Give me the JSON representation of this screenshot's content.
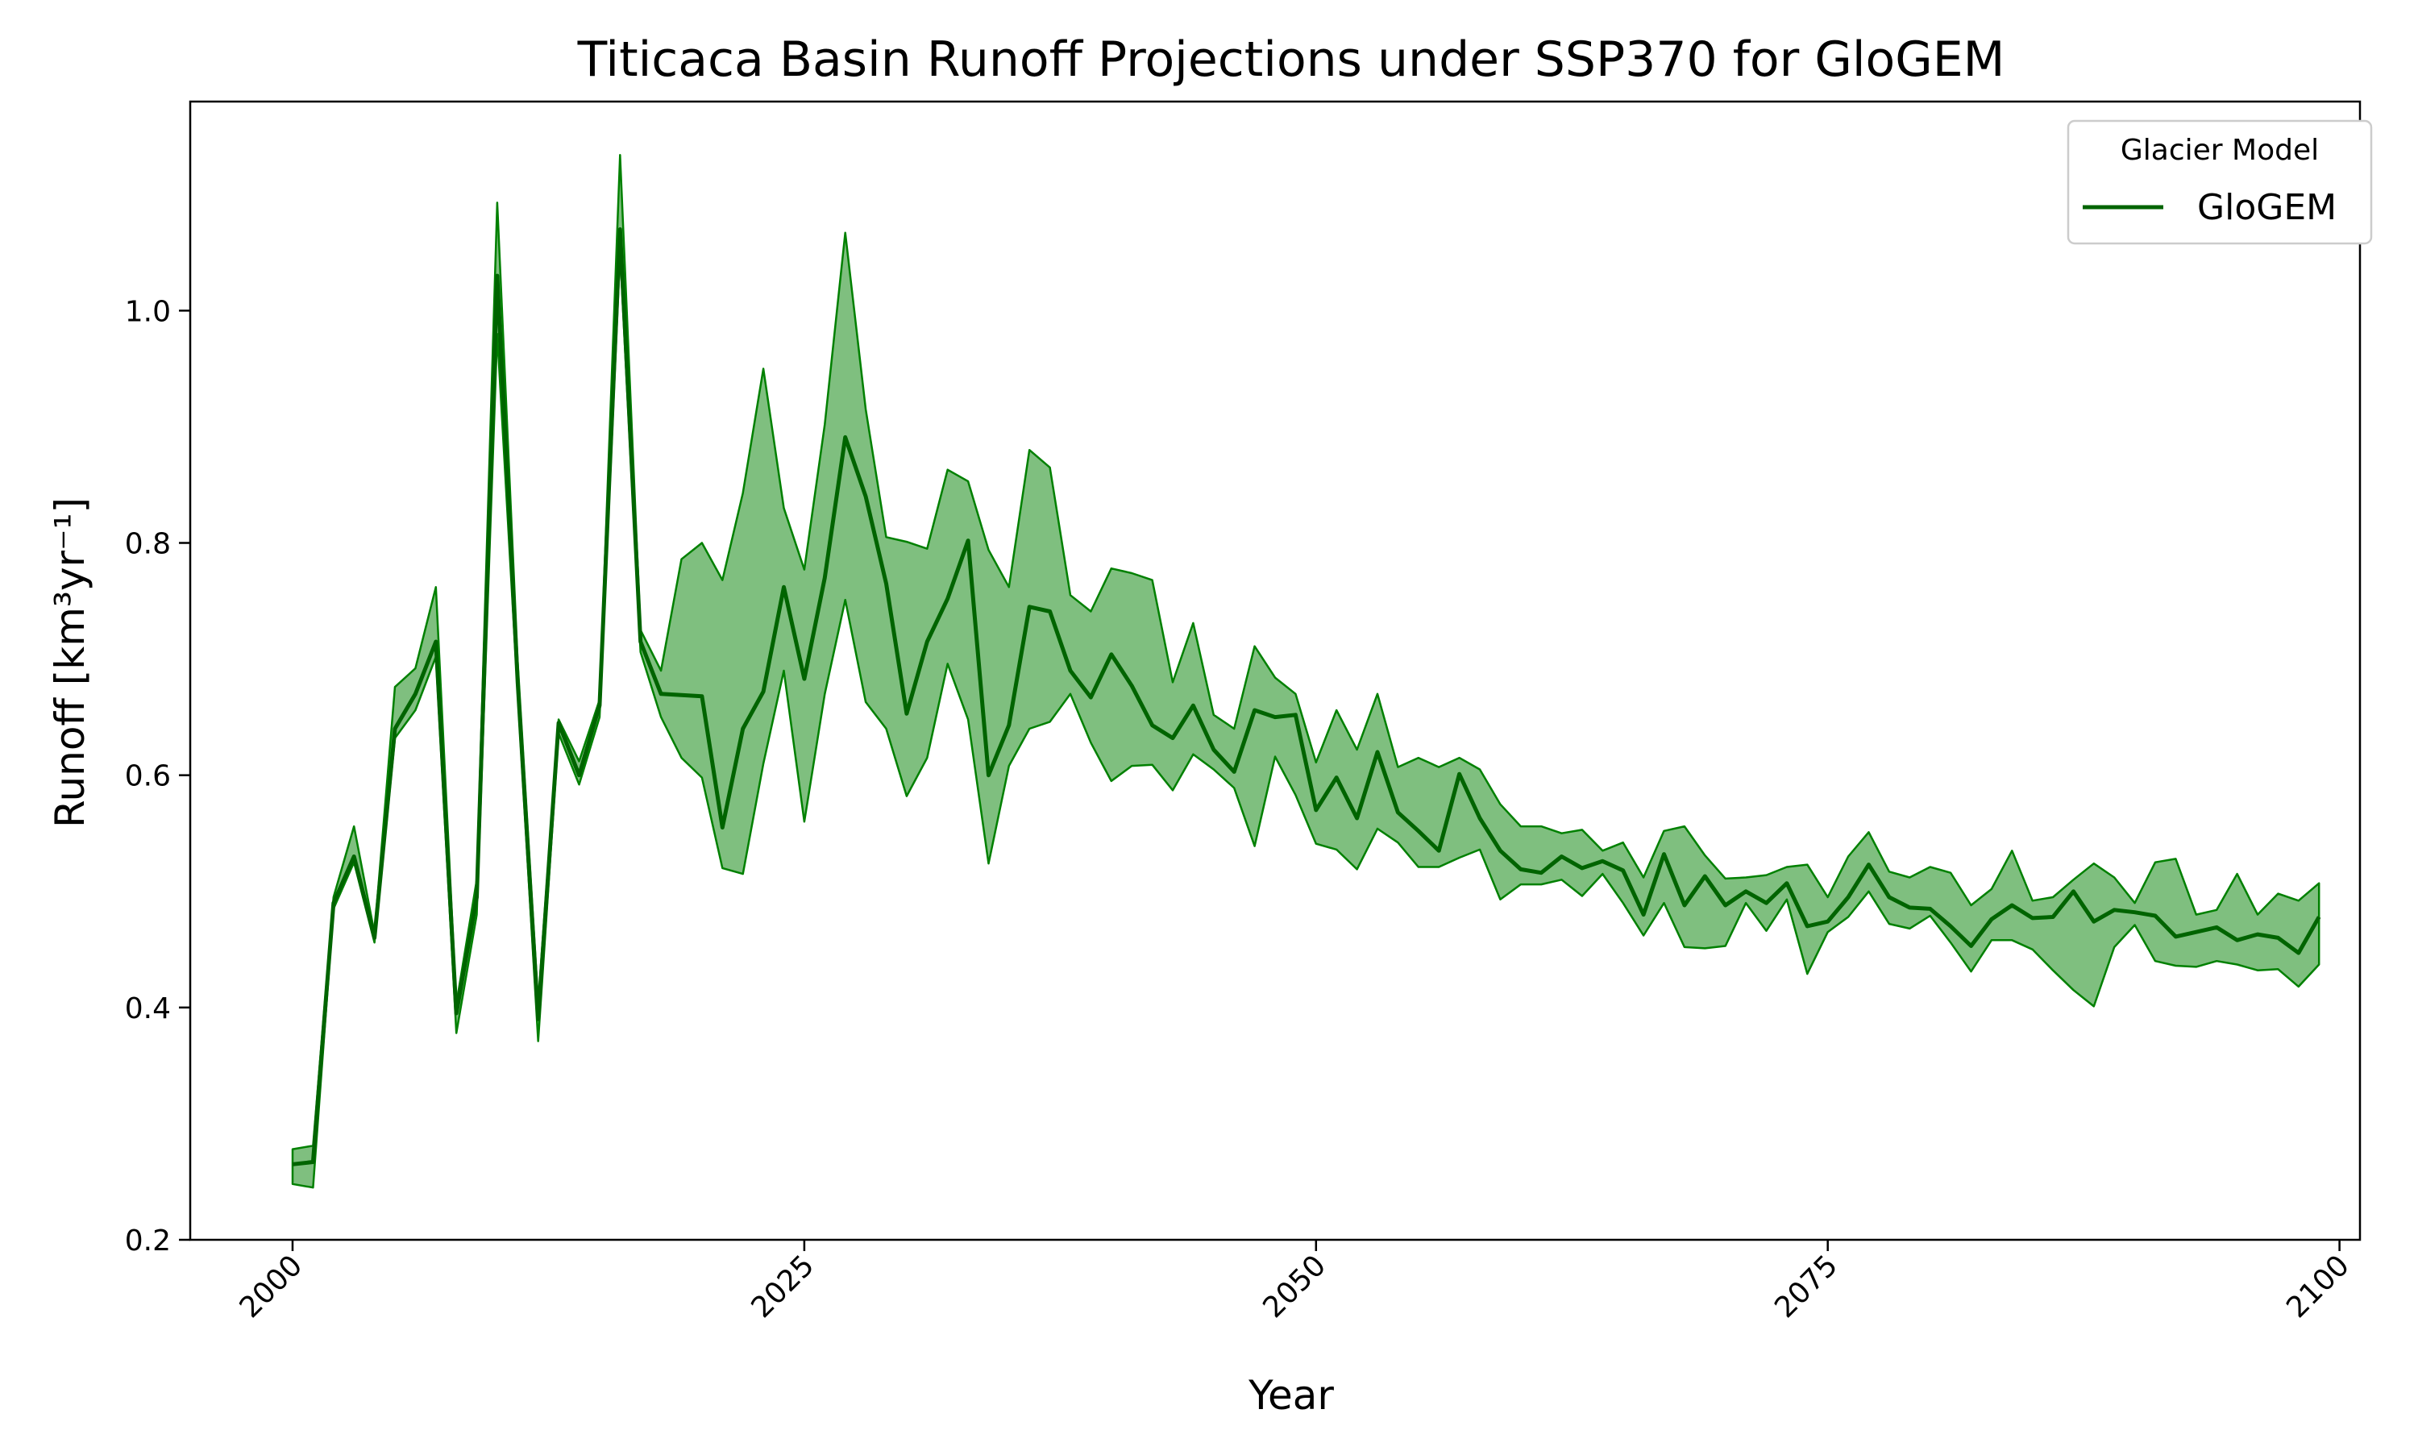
{
  "chart_data": {
    "type": "line",
    "title": "Titicaca Basin Runoff Projections under SSP370 for GloGEM",
    "xlabel": "Year",
    "ylabel": "Runoff [km³yr⁻¹]",
    "xlim": [
      1995,
      2101
    ],
    "ylim": [
      0.2,
      1.18
    ],
    "x_ticks": [
      2000,
      2025,
      2050,
      2075,
      2100
    ],
    "y_ticks": [
      0.2,
      0.4,
      0.6,
      0.8,
      1.0
    ],
    "grid": false,
    "legend": {
      "title": "Glacier Model",
      "position": "top-right"
    },
    "series": [
      {
        "name": "GloGEM",
        "color": "#006400",
        "band_color": "#008000",
        "x": [
          2000,
          2001,
          2002,
          2003,
          2004,
          2005,
          2006,
          2007,
          2008,
          2009,
          2010,
          2011,
          2012,
          2013,
          2014,
          2015,
          2016,
          2017,
          2018,
          2019,
          2020,
          2021,
          2022,
          2023,
          2024,
          2025,
          2026,
          2027,
          2028,
          2029,
          2030,
          2031,
          2032,
          2033,
          2034,
          2035,
          2036,
          2037,
          2038,
          2039,
          2040,
          2041,
          2042,
          2043,
          2044,
          2045,
          2046,
          2047,
          2048,
          2049,
          2050,
          2051,
          2052,
          2053,
          2054,
          2055,
          2056,
          2057,
          2058,
          2059,
          2060,
          2061,
          2062,
          2063,
          2064,
          2065,
          2066,
          2067,
          2068,
          2069,
          2070,
          2071,
          2072,
          2073,
          2074,
          2075,
          2076,
          2077,
          2078,
          2079,
          2080,
          2081,
          2082,
          2083,
          2084,
          2085,
          2086,
          2087,
          2088,
          2089,
          2090,
          2091,
          2092,
          2093,
          2094,
          2095,
          2096,
          2097,
          2098,
          2099
        ],
        "mean": [
          0.265,
          0.267,
          0.49,
          0.53,
          0.46,
          0.64,
          0.67,
          0.715,
          0.395,
          0.495,
          1.03,
          0.68,
          0.39,
          0.645,
          0.6,
          0.66,
          1.07,
          0.715,
          0.67,
          0.669,
          0.668,
          0.555,
          0.64,
          0.672,
          0.762,
          0.683,
          0.77,
          0.891,
          0.84,
          0.765,
          0.653,
          0.715,
          0.752,
          0.802,
          0.6,
          0.643,
          0.745,
          0.741,
          0.69,
          0.667,
          0.704,
          0.677,
          0.643,
          0.632,
          0.66,
          0.622,
          0.603,
          0.656,
          0.65,
          0.652,
          0.57,
          0.598,
          0.563,
          0.62,
          0.568,
          0.552,
          0.535,
          0.601,
          0.563,
          0.535,
          0.519,
          0.516,
          0.53,
          0.52,
          0.526,
          0.518,
          0.48,
          0.532,
          0.488,
          0.513,
          0.488,
          0.5,
          0.49,
          0.507,
          0.47,
          0.474,
          0.495,
          0.523,
          0.495,
          0.486,
          0.485,
          0.47,
          0.453,
          0.476,
          0.488,
          0.477,
          0.478,
          0.5,
          0.474,
          0.484,
          0.482,
          0.479,
          0.461,
          0.465,
          0.469,
          0.458,
          0.463,
          0.46,
          0.447,
          0.478
        ],
        "upper": [
          0.278,
          0.281,
          0.495,
          0.556,
          0.464,
          0.676,
          0.692,
          0.762,
          0.403,
          0.51,
          1.093,
          0.698,
          0.405,
          0.648,
          0.612,
          0.665,
          1.134,
          0.725,
          0.69,
          0.786,
          0.8,
          0.768,
          0.843,
          0.95,
          0.83,
          0.777,
          0.902,
          1.067,
          0.915,
          0.805,
          0.801,
          0.795,
          0.863,
          0.853,
          0.794,
          0.762,
          0.88,
          0.865,
          0.755,
          0.741,
          0.778,
          0.774,
          0.768,
          0.68,
          0.731,
          0.652,
          0.64,
          0.711,
          0.684,
          0.67,
          0.611,
          0.656,
          0.622,
          0.67,
          0.607,
          0.615,
          0.607,
          0.615,
          0.605,
          0.575,
          0.556,
          0.556,
          0.55,
          0.553,
          0.535,
          0.542,
          0.512,
          0.552,
          0.556,
          0.531,
          0.511,
          0.512,
          0.514,
          0.521,
          0.523,
          0.495,
          0.53,
          0.551,
          0.517,
          0.512,
          0.521,
          0.516,
          0.488,
          0.502,
          0.535,
          0.492,
          0.495,
          0.51,
          0.524,
          0.512,
          0.49,
          0.525,
          0.528,
          0.48,
          0.484,
          0.515,
          0.48,
          0.498,
          0.492,
          0.507
        ],
        "lower": [
          0.248,
          0.245,
          0.485,
          0.525,
          0.456,
          0.632,
          0.656,
          0.702,
          0.378,
          0.48,
          0.98,
          0.67,
          0.371,
          0.636,
          0.592,
          0.65,
          1.05,
          0.706,
          0.65,
          0.615,
          0.598,
          0.52,
          0.515,
          0.61,
          0.69,
          0.56,
          0.67,
          0.751,
          0.663,
          0.64,
          0.582,
          0.615,
          0.696,
          0.648,
          0.524,
          0.608,
          0.64,
          0.646,
          0.67,
          0.628,
          0.595,
          0.608,
          0.609,
          0.587,
          0.618,
          0.605,
          0.589,
          0.539,
          0.616,
          0.583,
          0.541,
          0.536,
          0.519,
          0.554,
          0.542,
          0.521,
          0.521,
          0.529,
          0.536,
          0.493,
          0.506,
          0.506,
          0.51,
          0.496,
          0.515,
          0.49,
          0.462,
          0.49,
          0.452,
          0.451,
          0.453,
          0.49,
          0.466,
          0.493,
          0.429,
          0.465,
          0.478,
          0.5,
          0.472,
          0.468,
          0.479,
          0.456,
          0.431,
          0.458,
          0.458,
          0.45,
          0.432,
          0.415,
          0.401,
          0.452,
          0.471,
          0.44,
          0.436,
          0.435,
          0.44,
          0.437,
          0.432,
          0.433,
          0.418,
          0.437
        ]
      }
    ]
  }
}
